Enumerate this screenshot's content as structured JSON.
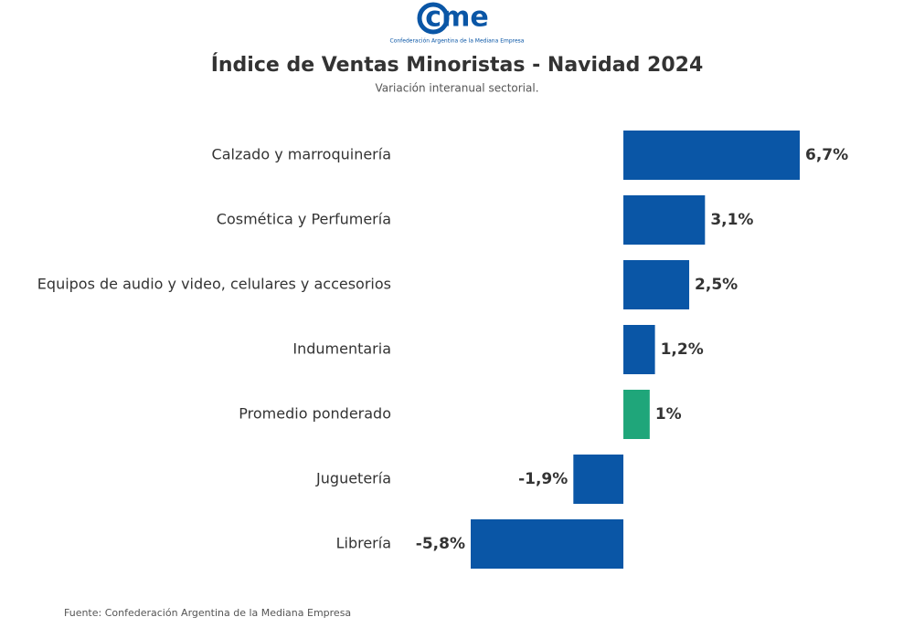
{
  "logo": {
    "text": "cme",
    "subtitle": "Confederación Argentina de la Mediana Empresa"
  },
  "chart_data": {
    "type": "hbar",
    "title": "Índice de Ventas Minoristas - Navidad 2024",
    "subtitle": "Variación interanual sectorial.",
    "categories": [
      "Calzado y marroquinería",
      "Cosmética y Perfumería",
      "Equipos de audio y video, celulares y accesorios",
      "Indumentaria",
      "Promedio ponderado",
      "Juguetería",
      "Librería"
    ],
    "values": [
      6.7,
      3.1,
      2.5,
      1.2,
      1,
      -1.9,
      -5.8
    ],
    "value_labels": [
      "6,7%",
      "3,1%",
      "2,5%",
      "1,2%",
      "1%",
      "-1,9%",
      "-5,8%"
    ],
    "colors": [
      "#0a56a6",
      "#0a56a6",
      "#0a56a6",
      "#0a56a6",
      "#1fa67a",
      "#0a56a6",
      "#0a56a6"
    ]
  },
  "footer": {
    "source": "Fuente: Confederación Argentina de la Mediana Empresa"
  }
}
